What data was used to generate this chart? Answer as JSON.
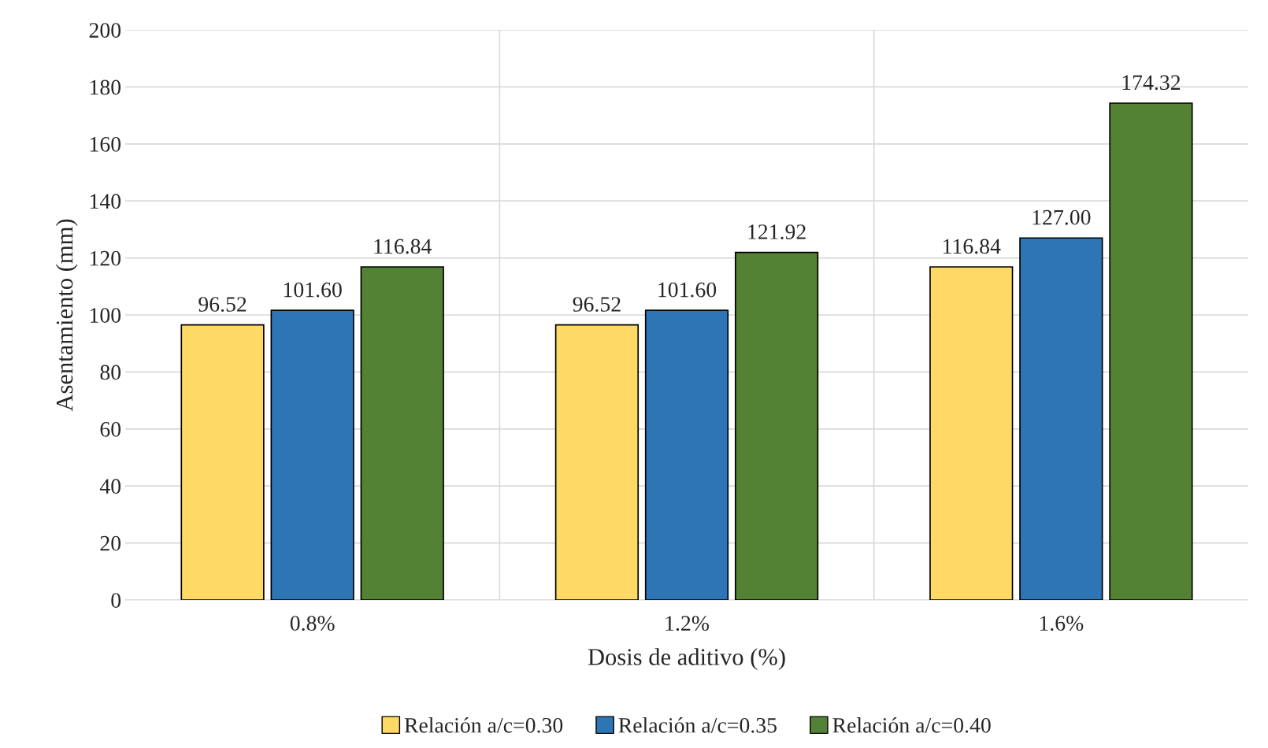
{
  "chart_data": {
    "type": "bar",
    "xlabel": "Dosis de aditivo (%)",
    "ylabel": "Asentamiento (mm)",
    "categories": [
      "0.8%",
      "1.2%",
      "1.6%"
    ],
    "series": [
      {
        "name": "Relación a/c=0.30",
        "color": "#ffd966",
        "values": [
          96.52,
          96.52,
          116.84
        ],
        "value_labels": [
          "96.52",
          "96.52",
          "116.84"
        ]
      },
      {
        "name": "Relación a/c=0.35",
        "color": "#2e75b6",
        "values": [
          101.6,
          101.6,
          127.0
        ],
        "value_labels": [
          "101.60",
          "101.60",
          "127.00"
        ]
      },
      {
        "name": "Relación a/c=0.40",
        "color": "#548235",
        "values": [
          116.84,
          121.92,
          174.32
        ],
        "value_labels": [
          "116.84",
          "121.92",
          "174.32"
        ]
      }
    ],
    "ylim": [
      0,
      200
    ],
    "yticks": [
      0,
      20,
      40,
      60,
      80,
      100,
      120,
      140,
      160,
      180,
      200
    ],
    "grid": true,
    "legend": "bottom"
  }
}
